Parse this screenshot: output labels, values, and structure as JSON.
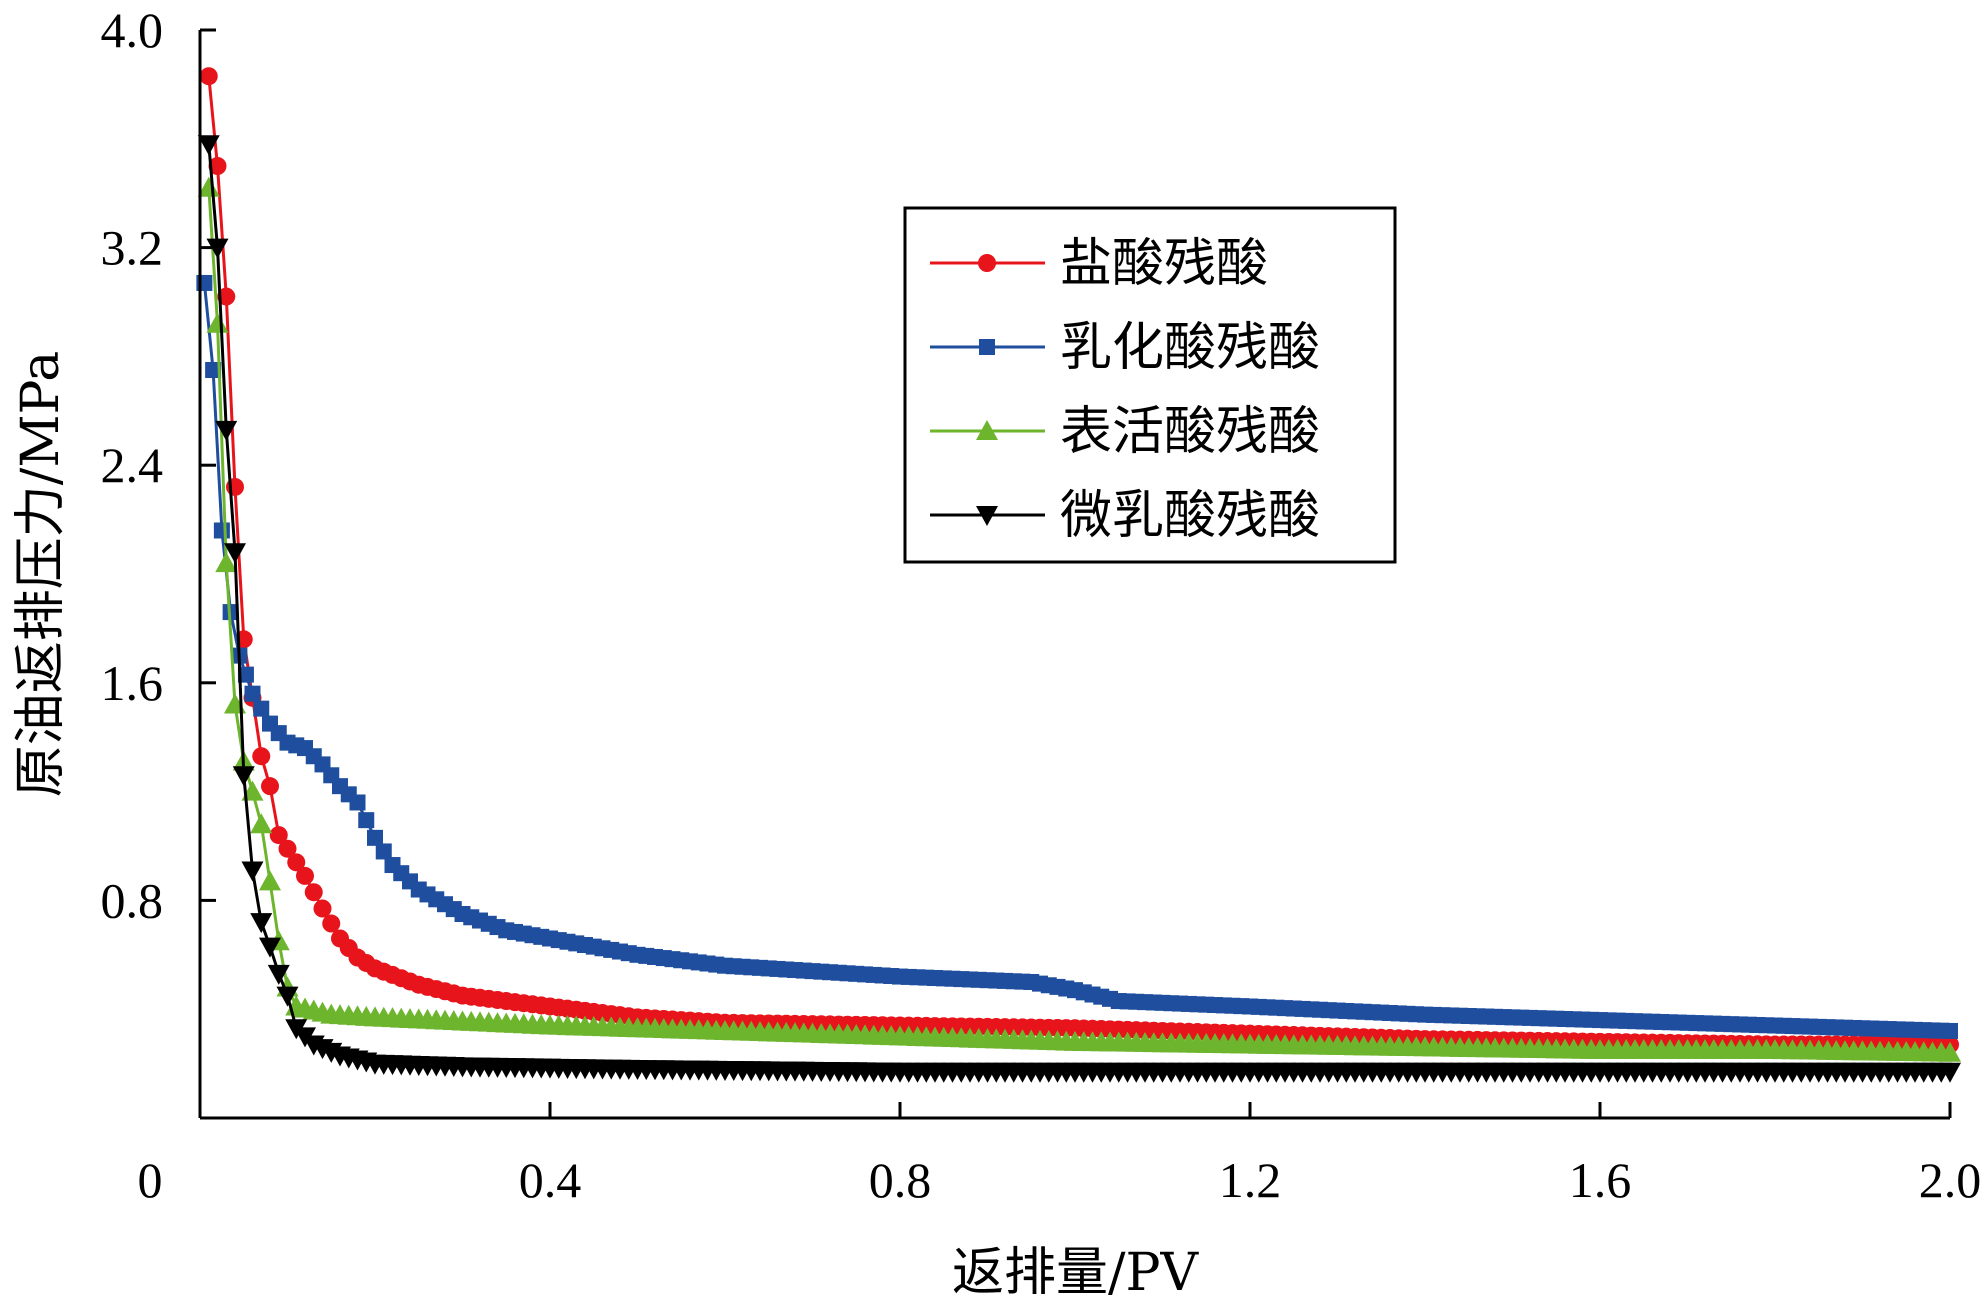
{
  "chart_data": {
    "type": "line",
    "title": "",
    "xlabel": "返排量/PV",
    "ylabel": "原油返排压力/MPa",
    "xlim": [
      0,
      2.0
    ],
    "ylim": [
      0,
      4.0
    ],
    "x_ticks": [
      "0",
      "0.4",
      "0.8",
      "1.2",
      "1.6",
      "2.0"
    ],
    "y_ticks": [
      "0.8",
      "1.6",
      "2.4",
      "3.2",
      "4.0"
    ],
    "grid": false,
    "legend_position": "top-right",
    "series": [
      {
        "name": "盐酸残酸",
        "color": "#e8141c",
        "marker": "circle",
        "points": [
          [
            0.01,
            3.83
          ],
          [
            0.02,
            3.5
          ],
          [
            0.03,
            3.02
          ],
          [
            0.04,
            2.32
          ],
          [
            0.05,
            1.76
          ],
          [
            0.07,
            1.33
          ],
          [
            0.08,
            1.22
          ],
          [
            0.09,
            1.04
          ],
          [
            0.1,
            0.99
          ],
          [
            0.12,
            0.89
          ],
          [
            0.14,
            0.77
          ],
          [
            0.16,
            0.66
          ],
          [
            0.18,
            0.59
          ],
          [
            0.2,
            0.55
          ],
          [
            0.25,
            0.49
          ],
          [
            0.3,
            0.45
          ],
          [
            0.4,
            0.41
          ],
          [
            0.5,
            0.37
          ],
          [
            0.6,
            0.35
          ],
          [
            0.8,
            0.34
          ],
          [
            1.0,
            0.33
          ],
          [
            1.2,
            0.31
          ],
          [
            1.4,
            0.29
          ],
          [
            1.6,
            0.28
          ],
          [
            1.8,
            0.27
          ],
          [
            2.0,
            0.27
          ]
        ]
      },
      {
        "name": "乳化酸残酸",
        "color": "#1f4e9f",
        "marker": "square",
        "points": [
          [
            0.005,
            3.07
          ],
          [
            0.015,
            2.75
          ],
          [
            0.025,
            2.16
          ],
          [
            0.035,
            1.86
          ],
          [
            0.045,
            1.7
          ],
          [
            0.06,
            1.56
          ],
          [
            0.08,
            1.45
          ],
          [
            0.1,
            1.38
          ],
          [
            0.12,
            1.36
          ],
          [
            0.14,
            1.3
          ],
          [
            0.16,
            1.22
          ],
          [
            0.18,
            1.16
          ],
          [
            0.2,
            1.03
          ],
          [
            0.22,
            0.93
          ],
          [
            0.25,
            0.84
          ],
          [
            0.3,
            0.75
          ],
          [
            0.35,
            0.69
          ],
          [
            0.4,
            0.66
          ],
          [
            0.5,
            0.6
          ],
          [
            0.6,
            0.56
          ],
          [
            0.8,
            0.52
          ],
          [
            0.95,
            0.5
          ],
          [
            1.0,
            0.47
          ],
          [
            1.05,
            0.43
          ],
          [
            1.2,
            0.41
          ],
          [
            1.4,
            0.38
          ],
          [
            1.6,
            0.36
          ],
          [
            1.8,
            0.34
          ],
          [
            2.0,
            0.32
          ]
        ]
      },
      {
        "name": "表活酸残酸",
        "color": "#6eb52e",
        "marker": "triangle-up",
        "points": [
          [
            0.01,
            3.42
          ],
          [
            0.02,
            2.92
          ],
          [
            0.03,
            2.04
          ],
          [
            0.04,
            1.52
          ],
          [
            0.05,
            1.31
          ],
          [
            0.06,
            1.2
          ],
          [
            0.07,
            1.08
          ],
          [
            0.08,
            0.87
          ],
          [
            0.09,
            0.65
          ],
          [
            0.1,
            0.48
          ],
          [
            0.11,
            0.41
          ],
          [
            0.15,
            0.38
          ],
          [
            0.2,
            0.37
          ],
          [
            0.4,
            0.34
          ],
          [
            0.6,
            0.32
          ],
          [
            0.8,
            0.3
          ],
          [
            1.0,
            0.28
          ],
          [
            1.2,
            0.27
          ],
          [
            1.4,
            0.26
          ],
          [
            1.6,
            0.25
          ],
          [
            1.8,
            0.25
          ],
          [
            2.0,
            0.24
          ]
        ]
      },
      {
        "name": "微乳酸残酸",
        "color": "#000000",
        "marker": "triangle-down",
        "points": [
          [
            0.01,
            3.58
          ],
          [
            0.02,
            3.2
          ],
          [
            0.03,
            2.53
          ],
          [
            0.04,
            2.08
          ],
          [
            0.05,
            1.26
          ],
          [
            0.06,
            0.91
          ],
          [
            0.07,
            0.72
          ],
          [
            0.08,
            0.63
          ],
          [
            0.09,
            0.53
          ],
          [
            0.1,
            0.45
          ],
          [
            0.11,
            0.33
          ],
          [
            0.13,
            0.27
          ],
          [
            0.16,
            0.23
          ],
          [
            0.2,
            0.2
          ],
          [
            0.3,
            0.19
          ],
          [
            0.5,
            0.18
          ],
          [
            0.8,
            0.17
          ],
          [
            1.2,
            0.17
          ],
          [
            1.6,
            0.17
          ],
          [
            2.0,
            0.17
          ]
        ]
      }
    ]
  }
}
